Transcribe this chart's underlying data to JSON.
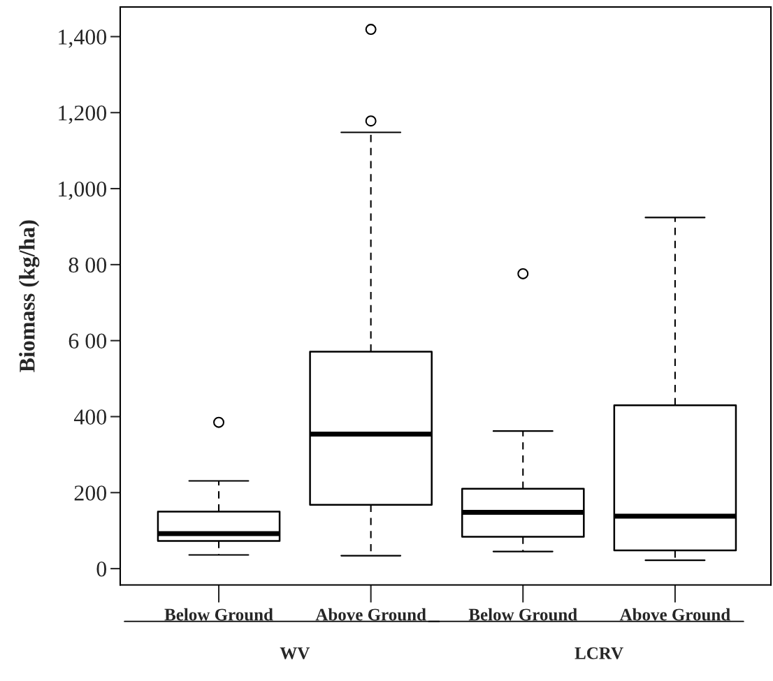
{
  "chart_data": {
    "type": "box",
    "ylabel": "Biomass (kg/ha)",
    "categories": [
      "Below Ground",
      "Above Ground",
      "Below Ground",
      "Above Ground"
    ],
    "boxes": [
      {
        "low": 36,
        "q1": 73,
        "median": 92,
        "q3": 150,
        "high": 231,
        "outliers": [
          385
        ]
      },
      {
        "low": 34,
        "q1": 168,
        "median": 354,
        "q3": 571,
        "high": 1148,
        "outliers": [
          1178,
          1419
        ]
      },
      {
        "low": 45,
        "q1": 84,
        "median": 148,
        "q3": 210,
        "high": 362,
        "outliers": [
          776
        ]
      },
      {
        "low": 22,
        "q1": 48,
        "median": 138,
        "q3": 430,
        "high": 924
      }
    ],
    "ylim": [
      -43,
      1478
    ],
    "yticks": [
      0,
      200,
      400,
      {
        "value": 600,
        "label": "6 00"
      },
      {
        "value": 800,
        "label": "8 00"
      },
      {
        "value": 1000,
        "label": "1,000"
      },
      {
        "value": 1200,
        "label": "1,200"
      },
      {
        "value": 1400,
        "label": "1,400"
      }
    ],
    "annotations": [
      "WV",
      "LCRV"
    ],
    "grid": false,
    "legend": false
  }
}
